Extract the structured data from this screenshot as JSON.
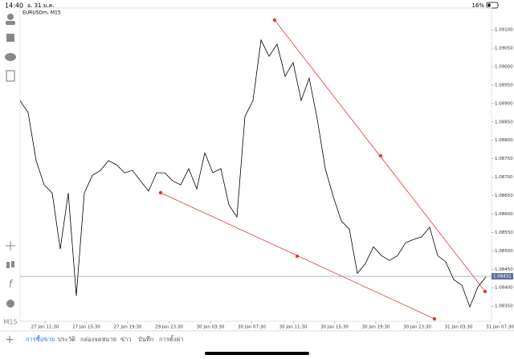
{
  "status_bar": {
    "time": "14:40",
    "date": "อ. 31 ม.ค.",
    "battery": "16%"
  },
  "chart": {
    "type": "line",
    "symbol": "EURUSDm, M15",
    "timeframe": "M15",
    "xlabels": [
      "27 Jan 11:30",
      "27 Jan 15:30",
      "27 Jan 19:30",
      "29 Jan 23:30",
      "30 Jan 03:30",
      "30 Jan 07:30",
      "30 Jan 11:30",
      "30 Jan 15:30",
      "30 Jan 19:30",
      "30 Jan 23:30",
      "31 Jan 03:30",
      "31 Jan 07:30"
    ],
    "values": [
      1.08908,
      1.08875,
      1.08745,
      1.08679,
      1.08657,
      1.08505,
      1.08657,
      1.08378,
      1.08657,
      1.08705,
      1.08718,
      1.08745,
      1.08734,
      1.08712,
      1.08718,
      1.0869,
      1.08662,
      1.08712,
      1.08712,
      1.0869,
      1.08679,
      1.08723,
      1.08668,
      1.08766,
      1.08712,
      1.08723,
      1.08625,
      1.08592,
      1.08865,
      1.08908,
      1.09072,
      1.09028,
      1.09061,
      1.08974,
      1.09011,
      1.08908,
      1.08969,
      1.08858,
      1.08723,
      1.08647,
      1.08581,
      1.08559,
      1.08439,
      1.08466,
      1.08511,
      1.08487,
      1.08474,
      1.08487,
      1.08522,
      1.08531,
      1.08538,
      1.08564,
      1.08487,
      1.0847,
      1.08422,
      1.08407,
      1.08348,
      1.08402,
      1.08429
    ],
    "color": "#000000",
    "ylim": [
      1.08309,
      1.09159
    ],
    "yticks": [
      {
        "value": 1.091,
        "label": "1.09100"
      },
      {
        "value": 1.0905,
        "label": "1.09050"
      },
      {
        "value": 1.09,
        "label": "1.09000"
      },
      {
        "value": 1.0895,
        "label": "1.08950"
      },
      {
        "value": 1.089,
        "label": "1.08900"
      },
      {
        "value": 1.0885,
        "label": "1.08850"
      },
      {
        "value": 1.088,
        "label": "1.08800"
      },
      {
        "value": 1.0875,
        "label": "1.08750"
      },
      {
        "value": 1.087,
        "label": "1.08700"
      },
      {
        "value": 1.0865,
        "label": "1.08650"
      },
      {
        "value": 1.086,
        "label": "1.08600"
      },
      {
        "value": 1.0855,
        "label": "1.08550"
      },
      {
        "value": 1.085,
        "label": "1.08500"
      },
      {
        "value": 1.0845,
        "label": "1.08450"
      },
      {
        "value": 1.084,
        "label": "1.08400"
      },
      {
        "value": 1.0835,
        "label": "1.08350"
      }
    ],
    "current_price": 1.08431
  },
  "tabs": [
    "การซื้อขาย",
    "ประวัติ",
    "กล่องจดหมาย",
    "ข่าว",
    "บันทึก",
    "การตั้งค่า"
  ]
}
